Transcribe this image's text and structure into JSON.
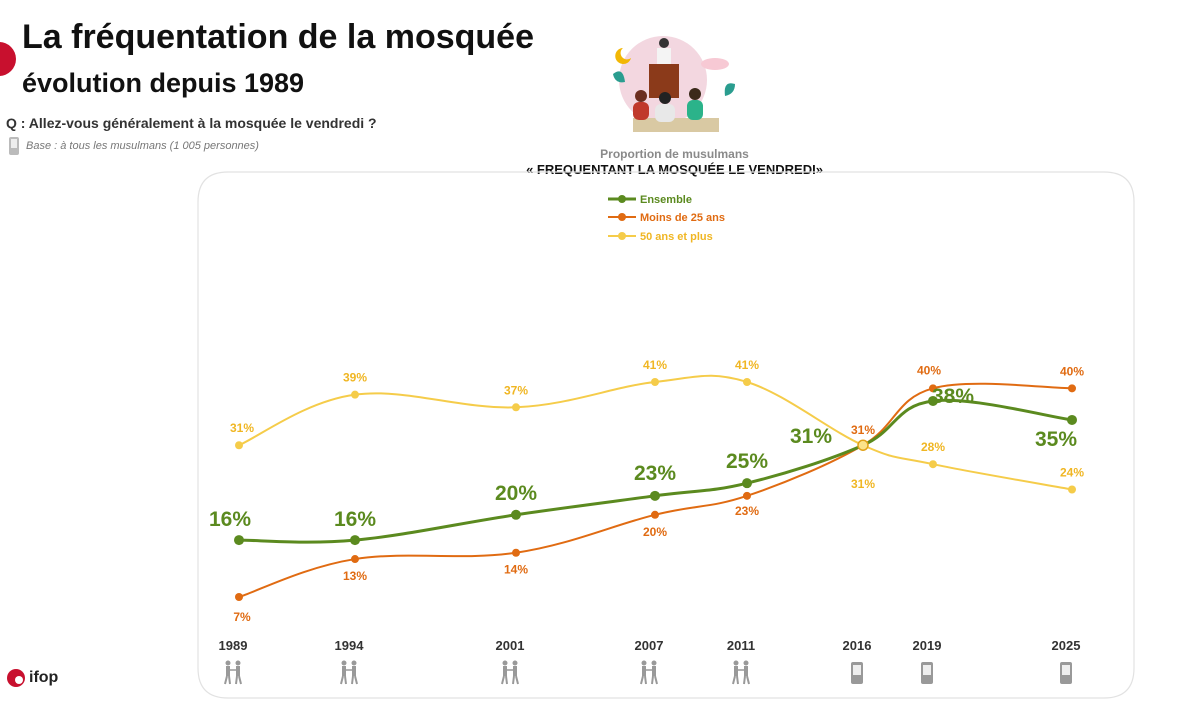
{
  "header": {
    "title": "La fréquentation de la mosquée",
    "subtitle": "évolution depuis 1989",
    "question": "Q : Allez-vous généralement à la mosquée le vendredi ?",
    "base": "Base : à tous les musulmans (1 005 personnes)"
  },
  "chart_heading": {
    "line1": "Proportion de musulmans",
    "line2": "« FREQUENTANT LA MOSQUÉE LE VENDREDI»"
  },
  "logo": {
    "text": "ifop"
  },
  "colors": {
    "ensemble": "#5b8a1f",
    "moins25": "#e06b12",
    "plus50": "#f5cc4a",
    "brand": "#c8102e"
  },
  "chart_data": {
    "type": "line",
    "title": "Proportion de musulmans « FREQUENTANT LA MOSQUÉE LE VENDREDI»",
    "x": [
      1989,
      1994,
      2001,
      2007,
      2011,
      2016,
      2019,
      2025
    ],
    "x_labels": [
      "1989",
      "1994",
      "2001",
      "2007",
      "2011",
      "2016",
      "2019",
      "2025"
    ],
    "survey_mode_icons": [
      "face-to-face-icon",
      "face-to-face-icon",
      "face-to-face-icon",
      "face-to-face-icon",
      "face-to-face-icon",
      "phone-icon",
      "phone-icon",
      "phone-icon"
    ],
    "ylim": [
      0,
      45
    ],
    "series": [
      {
        "key": "ensemble",
        "name": "Ensemble",
        "values": [
          16,
          16,
          20,
          23,
          25,
          31,
          38,
          35
        ],
        "labels": [
          "16%",
          "16%",
          "20%",
          "23%",
          "25%",
          "31%",
          "38%",
          "35%"
        ]
      },
      {
        "key": "moins25",
        "name": "Moins de 25 ans",
        "values": [
          7,
          13,
          14,
          20,
          23,
          31,
          40,
          40
        ],
        "labels": [
          "7%",
          "13%",
          "14%",
          "20%",
          "23%",
          "31%",
          "40%",
          "40%"
        ]
      },
      {
        "key": "plus50",
        "name": "50 ans et plus",
        "values": [
          31,
          39,
          37,
          41,
          41,
          31,
          28,
          24
        ],
        "labels": [
          "31%",
          "39%",
          "37%",
          "41%",
          "41%",
          "31%",
          "28%",
          "24%"
        ]
      }
    ]
  }
}
